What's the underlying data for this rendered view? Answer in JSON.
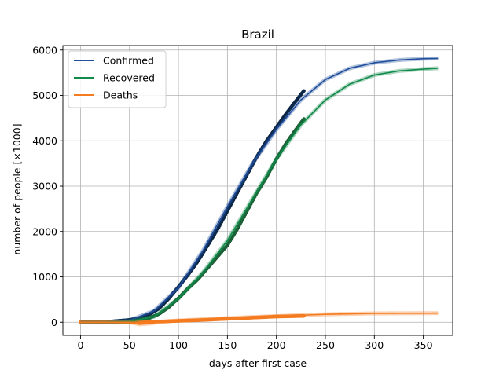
{
  "chart_data": {
    "type": "line",
    "title": "Brazil",
    "xlabel": "days after first case",
    "ylabel": "number of people [×1000]",
    "xlim": [
      -18,
      380
    ],
    "ylim": [
      -290,
      6100
    ],
    "xticks": [
      0,
      50,
      100,
      150,
      200,
      250,
      300,
      350
    ],
    "yticks": [
      0,
      1000,
      2000,
      3000,
      4000,
      5000,
      6000
    ],
    "grid": true,
    "legend_position": "top-left",
    "observed_through_day": 228,
    "series": [
      {
        "name": "Confirmed",
        "color": "#1f4e9c",
        "point_color": "#0b2545",
        "fit": {
          "x": [
            0,
            25,
            50,
            75,
            100,
            125,
            150,
            175,
            200,
            225,
            250,
            275,
            300,
            325,
            350,
            365
          ],
          "y": [
            0,
            5,
            40,
            250,
            760,
            1580,
            2550,
            3480,
            4250,
            4900,
            5350,
            5600,
            5720,
            5780,
            5810,
            5815
          ]
        },
        "observed": {
          "x": [
            0,
            25,
            50,
            60,
            70,
            80,
            90,
            100,
            110,
            120,
            130,
            140,
            150,
            160,
            170,
            180,
            190,
            200,
            210,
            220,
            228
          ],
          "y": [
            0,
            5,
            50,
            90,
            170,
            300,
            520,
            780,
            1050,
            1350,
            1700,
            2050,
            2450,
            2850,
            3250,
            3650,
            4000,
            4300,
            4600,
            4880,
            5100
          ]
        }
      },
      {
        "name": "Recovered",
        "color": "#118a4a",
        "point_color": "#1c5e35",
        "fit": {
          "x": [
            0,
            25,
            50,
            75,
            100,
            125,
            150,
            175,
            200,
            225,
            250,
            275,
            300,
            325,
            350,
            365
          ],
          "y": [
            0,
            2,
            20,
            120,
            520,
            1100,
            1800,
            2700,
            3600,
            4350,
            4900,
            5250,
            5450,
            5540,
            5580,
            5600
          ]
        },
        "observed": {
          "x": [
            0,
            25,
            50,
            60,
            70,
            80,
            90,
            100,
            110,
            120,
            130,
            140,
            150,
            160,
            170,
            180,
            190,
            200,
            210,
            220,
            228
          ],
          "y": [
            0,
            2,
            15,
            40,
            90,
            180,
            330,
            530,
            750,
            950,
            1200,
            1450,
            1700,
            2050,
            2450,
            2850,
            3200,
            3600,
            3950,
            4250,
            4480
          ]
        }
      },
      {
        "name": "Deaths",
        "color": "#f47b20",
        "point_color": "#f47b20",
        "fit": {
          "x": [
            0,
            25,
            50,
            60,
            70,
            80,
            100,
            125,
            150,
            175,
            200,
            250,
            300,
            365
          ],
          "y": [
            0,
            0,
            0,
            -45,
            -30,
            5,
            40,
            65,
            90,
            115,
            135,
            175,
            195,
            200
          ]
        },
        "observed": {
          "x": [
            0,
            25,
            50,
            60,
            70,
            80,
            90,
            100,
            110,
            120,
            130,
            140,
            150,
            160,
            170,
            180,
            190,
            200,
            210,
            220,
            228
          ],
          "y": [
            0,
            0,
            2,
            4,
            8,
            15,
            22,
            30,
            38,
            45,
            55,
            65,
            75,
            85,
            95,
            105,
            115,
            125,
            130,
            135,
            140
          ]
        }
      }
    ]
  }
}
